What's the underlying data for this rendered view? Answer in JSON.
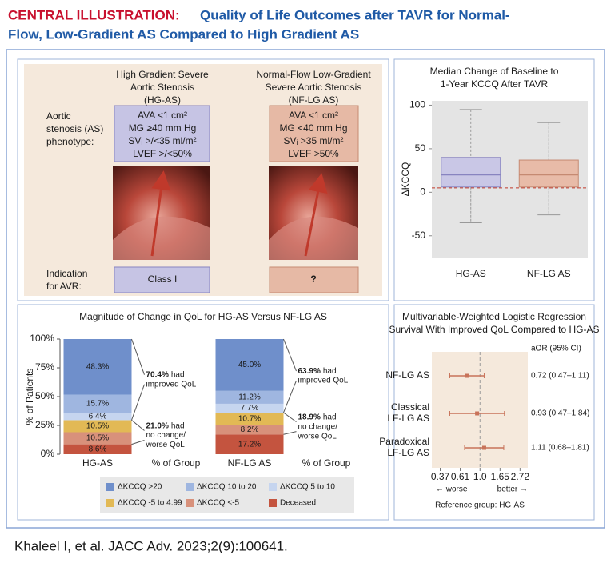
{
  "header": {
    "label": "CENTRAL ILLUSTRATION:",
    "title_lines": [
      "Quality of Life Outcomes after TAVR for Normal-",
      "Flow, Low-Gradient AS Compared to High Gradient AS"
    ]
  },
  "phenotype": {
    "columns": [
      {
        "title_lines": [
          "High Gradient Severe",
          "Aortic Stenosis",
          "(HG-AS)"
        ],
        "criteria": [
          "AVA <1 cm²",
          "MG ≥40 mm Hg",
          "SVᵢ >/<35 ml/m²",
          "LVEF >/<50%"
        ],
        "indication": "Class I"
      },
      {
        "title_lines": [
          "Normal-Flow Low-Gradient",
          "Severe Aortic Stenosis",
          "(NF-LG AS)"
        ],
        "criteria": [
          "AVA <1 cm²",
          "MG <40 mm Hg",
          "SVᵢ >35 ml/m²",
          "LVEF >50%"
        ],
        "indication": "?"
      }
    ],
    "row_labels": [
      [
        "Aortic",
        "stenosis (AS)",
        "phenotype:"
      ],
      [
        "Indication",
        "for AVR:"
      ]
    ]
  },
  "chart_data": [
    {
      "type": "box",
      "title_lines": [
        "Median Change of Baseline to",
        "1-Year KCCQ After TAVR"
      ],
      "ylabel": "ΔKCCQ",
      "categories": [
        "HG-AS",
        "NF-LG AS"
      ],
      "boxes": [
        {
          "min": -35,
          "q1": 6,
          "median": 20,
          "q3": 40,
          "max": 95,
          "color": "#c9c7e6"
        },
        {
          "min": -26,
          "q1": 6,
          "median": 20,
          "q3": 37,
          "max": 80,
          "color": "#e8bba8"
        }
      ],
      "reference_line": 5,
      "reference_color": "#c0392b",
      "ylim": [
        -75,
        105
      ],
      "yticks": [
        -50,
        0,
        50,
        100
      ]
    },
    {
      "type": "stacked_bar",
      "title": "Magnitude of Change in QoL for HG-AS Versus NF-LG AS",
      "ylabel": "% of Patients",
      "categories": [
        "HG-AS",
        "% of Group",
        "NF-LG AS",
        "% of Group"
      ],
      "series": [
        {
          "name": "ΔKCCQ >20",
          "color": "#6f8fcb",
          "values": [
            48.3,
            null,
            45.0,
            null
          ],
          "value_labels": [
            "48.3%",
            null,
            "45.0%",
            null
          ]
        },
        {
          "name": "ΔKCCQ 10 to 20",
          "color": "#9fb6e0",
          "values": [
            15.7,
            null,
            11.2,
            null
          ],
          "value_labels": [
            "15.7%",
            null,
            "11.2%",
            null
          ]
        },
        {
          "name": "ΔKCCQ 5 to 10",
          "color": "#c6d5ef",
          "values": [
            6.4,
            null,
            7.7,
            null
          ],
          "value_labels": [
            "6.4%",
            null,
            "7.7%",
            null
          ]
        },
        {
          "name": "ΔKCCQ -5 to 4.99",
          "color": "#e2b955",
          "values": [
            10.5,
            null,
            10.7,
            null
          ],
          "value_labels": [
            "10.5%",
            null,
            "10.7%",
            null
          ]
        },
        {
          "name": "ΔKCCQ <-5",
          "color": "#d8917b",
          "values": [
            10.5,
            null,
            8.2,
            null
          ],
          "value_labels": [
            "10.5%",
            null,
            "8.2%",
            null
          ]
        },
        {
          "name": "Deceased",
          "color": "#c4543f",
          "values": [
            8.6,
            null,
            17.2,
            null
          ],
          "value_labels": [
            "8.6%",
            null,
            "17.2%",
            null
          ]
        }
      ],
      "annotations": [
        {
          "value": 70.4,
          "label": "70.4%",
          "lines": [
            "had",
            "improved QoL"
          ]
        },
        {
          "value": 21.0,
          "label": "21.0%",
          "lines": [
            "had",
            "no change/",
            "worse QoL"
          ]
        },
        {
          "value": 63.9,
          "label": "63.9%",
          "lines": [
            "had",
            "improved QoL"
          ]
        },
        {
          "value": 18.9,
          "label": "18.9%",
          "lines": [
            "had",
            "no change/",
            "worse QoL"
          ]
        }
      ],
      "ylim": [
        0,
        100
      ],
      "yticks": [
        {
          "value": 0,
          "label": "0%"
        },
        {
          "value": 25,
          "label": "25%"
        },
        {
          "value": 50,
          "label": "50%"
        },
        {
          "value": 75,
          "label": "75%"
        },
        {
          "value": 100,
          "label": "100%"
        }
      ]
    },
    {
      "type": "forest",
      "title_lines": [
        "Multivariable-Weighted Logistic Regression",
        "Survival With Improved QoL Compared to HG-AS"
      ],
      "value_header": "aOR (95% CI)",
      "categories": [
        [
          "NF-LG AS"
        ],
        [
          "Classical",
          "LF-LG AS"
        ],
        [
          "Paradoxical",
          "LF-LG AS"
        ]
      ],
      "values": [
        0.72,
        0.93,
        1.11
      ],
      "ci_low": [
        0.47,
        0.47,
        0.68
      ],
      "ci_high": [
        1.11,
        1.84,
        1.81
      ],
      "value_labels": [
        "0.72 (0.47–1.11)",
        "0.93 (0.47–1.84)",
        "1.11 (0.68–1.81)"
      ],
      "color": "#c8735a",
      "xlim": [
        0.3,
        3.3
      ],
      "log_x": true,
      "xticks": [
        0.37,
        0.61,
        {
          "value": 1,
          "label": "1.0"
        },
        1.65,
        2.72
      ],
      "reference_line": 1,
      "direction_labels": [
        "← worse",
        "better →"
      ],
      "note": "Reference group: HG-AS"
    }
  ],
  "citation": "Khaleel I, et al. JACC Adv. 2023;2(9):100641."
}
